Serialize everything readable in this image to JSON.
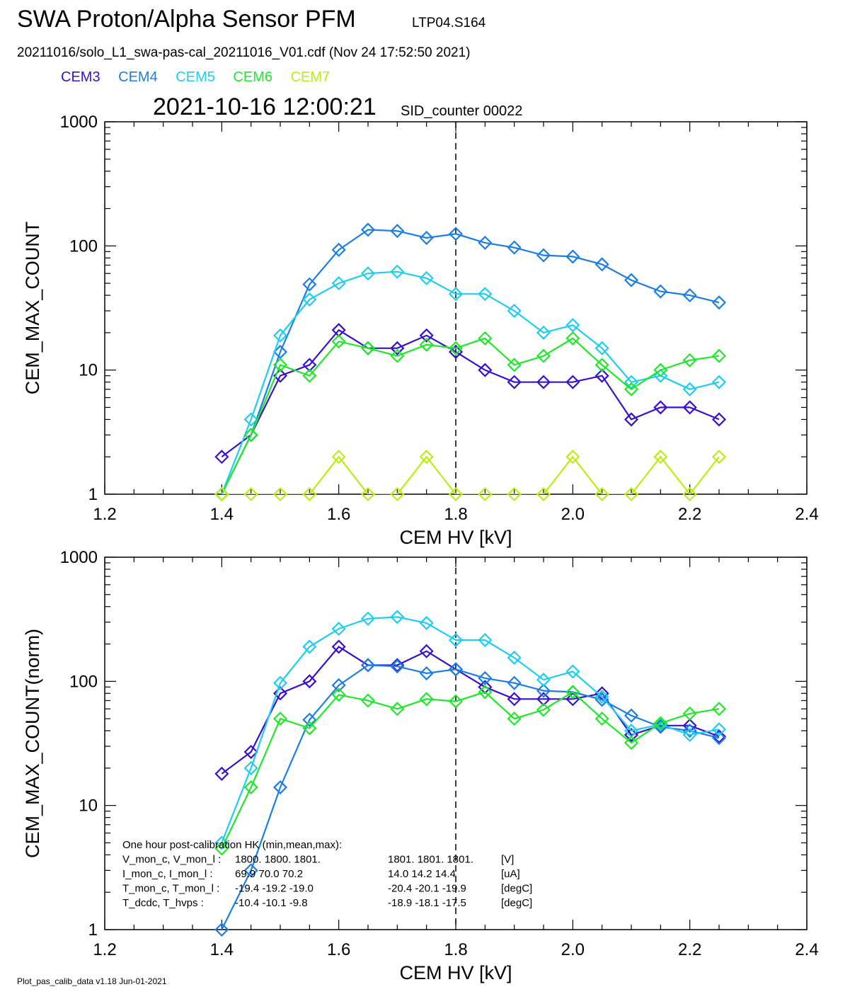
{
  "header": {
    "title": "SWA Proton/Alpha Sensor PFM",
    "subtitle": "LTP04.S164",
    "file_line": "20211016/solo_L1_swa-pas-cal_20211016_V01.cdf  (Nov 24 17:52:50 2021)",
    "timestamp": "2021-10-16 12:00:21",
    "sid_counter": "SID_counter 00022"
  },
  "legend": [
    {
      "name": "CEM3",
      "color": "#3a10d0"
    },
    {
      "name": "CEM4",
      "color": "#1a7ee6"
    },
    {
      "name": "CEM5",
      "color": "#1ecdf2"
    },
    {
      "name": "CEM6",
      "color": "#1fe82a"
    },
    {
      "name": "CEM7",
      "color": "#b8ef10"
    }
  ],
  "chart_data": [
    {
      "type": "line",
      "xlabel": "CEM HV [kV]",
      "ylabel": "CEM_MAX_COUNT",
      "xlim": [
        1.2,
        2.4
      ],
      "ylim": [
        1,
        1000
      ],
      "yscale": "log",
      "x_ticks": [
        "1.2",
        "1.4",
        "1.6",
        "1.8",
        "2.0",
        "2.2",
        "2.4"
      ],
      "y_ticks": [
        "1",
        "10",
        "100",
        "1000"
      ],
      "vline_x": 1.8,
      "x": [
        1.4,
        1.45,
        1.5,
        1.55,
        1.6,
        1.65,
        1.7,
        1.75,
        1.8,
        1.85,
        1.9,
        1.95,
        2.0,
        2.05,
        2.1,
        2.15,
        2.2,
        2.25
      ],
      "series": [
        {
          "name": "CEM3",
          "values": [
            2,
            3,
            9,
            11,
            21,
            15,
            15,
            19,
            14,
            10,
            8,
            8,
            8,
            9,
            4,
            5,
            5,
            4
          ]
        },
        {
          "name": "CEM4",
          "values": [
            1,
            3,
            14,
            49,
            93,
            135,
            132,
            116,
            125,
            106,
            97,
            84,
            82,
            71,
            53,
            43,
            40,
            35
          ]
        },
        {
          "name": "CEM5",
          "values": [
            1,
            4,
            19,
            37,
            50,
            60,
            62,
            55,
            41,
            41,
            30,
            20,
            23,
            15,
            8,
            9,
            7,
            8
          ]
        },
        {
          "name": "CEM6",
          "values": [
            1,
            3,
            11,
            9,
            17,
            15,
            13,
            16,
            15,
            18,
            11,
            13,
            18,
            11,
            7,
            10,
            12,
            13
          ]
        },
        {
          "name": "CEM7",
          "values": [
            1,
            1,
            1,
            1,
            2,
            1,
            1,
            2,
            1,
            1,
            1,
            1,
            2,
            1,
            1,
            2,
            1,
            2
          ]
        }
      ]
    },
    {
      "type": "line",
      "xlabel": "CEM HV [kV]",
      "ylabel": "CEM_MAX_COUNT(norm)",
      "xlim": [
        1.2,
        2.4
      ],
      "ylim": [
        1,
        1000
      ],
      "yscale": "log",
      "x_ticks": [
        "1.2",
        "1.4",
        "1.6",
        "1.8",
        "2.0",
        "2.2",
        "2.4"
      ],
      "y_ticks": [
        "1",
        "10",
        "100",
        "1000"
      ],
      "vline_x": 1.8,
      "x": [
        1.4,
        1.45,
        1.5,
        1.55,
        1.6,
        1.65,
        1.7,
        1.75,
        1.8,
        1.85,
        1.9,
        1.95,
        2.0,
        2.05,
        2.1,
        2.15,
        2.2,
        2.25
      ],
      "series": [
        {
          "name": "CEM3",
          "values": [
            18,
            27,
            80,
            100,
            190,
            135,
            135,
            175,
            125,
            90,
            72,
            72,
            72,
            80,
            37,
            44,
            44,
            36
          ]
        },
        {
          "name": "CEM4",
          "values": [
            1,
            3,
            14,
            49,
            93,
            135,
            132,
            116,
            125,
            106,
            97,
            84,
            82,
            71,
            53,
            43,
            40,
            35
          ]
        },
        {
          "name": "CEM5",
          "values": [
            5,
            20,
            97,
            190,
            265,
            320,
            330,
            295,
            215,
            215,
            155,
            103,
            120,
            75,
            40,
            45,
            37,
            41
          ]
        },
        {
          "name": "CEM6",
          "values": [
            4.5,
            14,
            50,
            42,
            78,
            70,
            60,
            72,
            69,
            82,
            50,
            59,
            82,
            50,
            32,
            46,
            55,
            60
          ]
        }
      ],
      "annotation": {
        "heading": "One hour post-calibration HK (min,mean,max):",
        "rows": [
          {
            "label": "V_mon_c, V_mon_l :",
            "c": "1800.  1800.  1801.",
            "l": "1801.  1801.  1801.",
            "unit": "[V]"
          },
          {
            "label": "I_mon_c,  I_mon_l :",
            "c": "69.9   70.0   70.2",
            "l": "14.0   14.2   14.4",
            "unit": "[uA]"
          },
          {
            "label": "T_mon_c, T_mon_l :",
            "c": "-19.4  -19.2  -19.0",
            "l": "-20.4  -20.1  -19.9",
            "unit": "[degC]"
          },
          {
            "label": "T_dcdc,    T_hvps :",
            "c": "-10.4  -10.1   -9.8",
            "l": "-18.9  -18.1  -17.5",
            "unit": "[degC]"
          }
        ]
      }
    }
  ],
  "footer": "Plot_pas_calib_data v1.18 Jun-01-2021"
}
